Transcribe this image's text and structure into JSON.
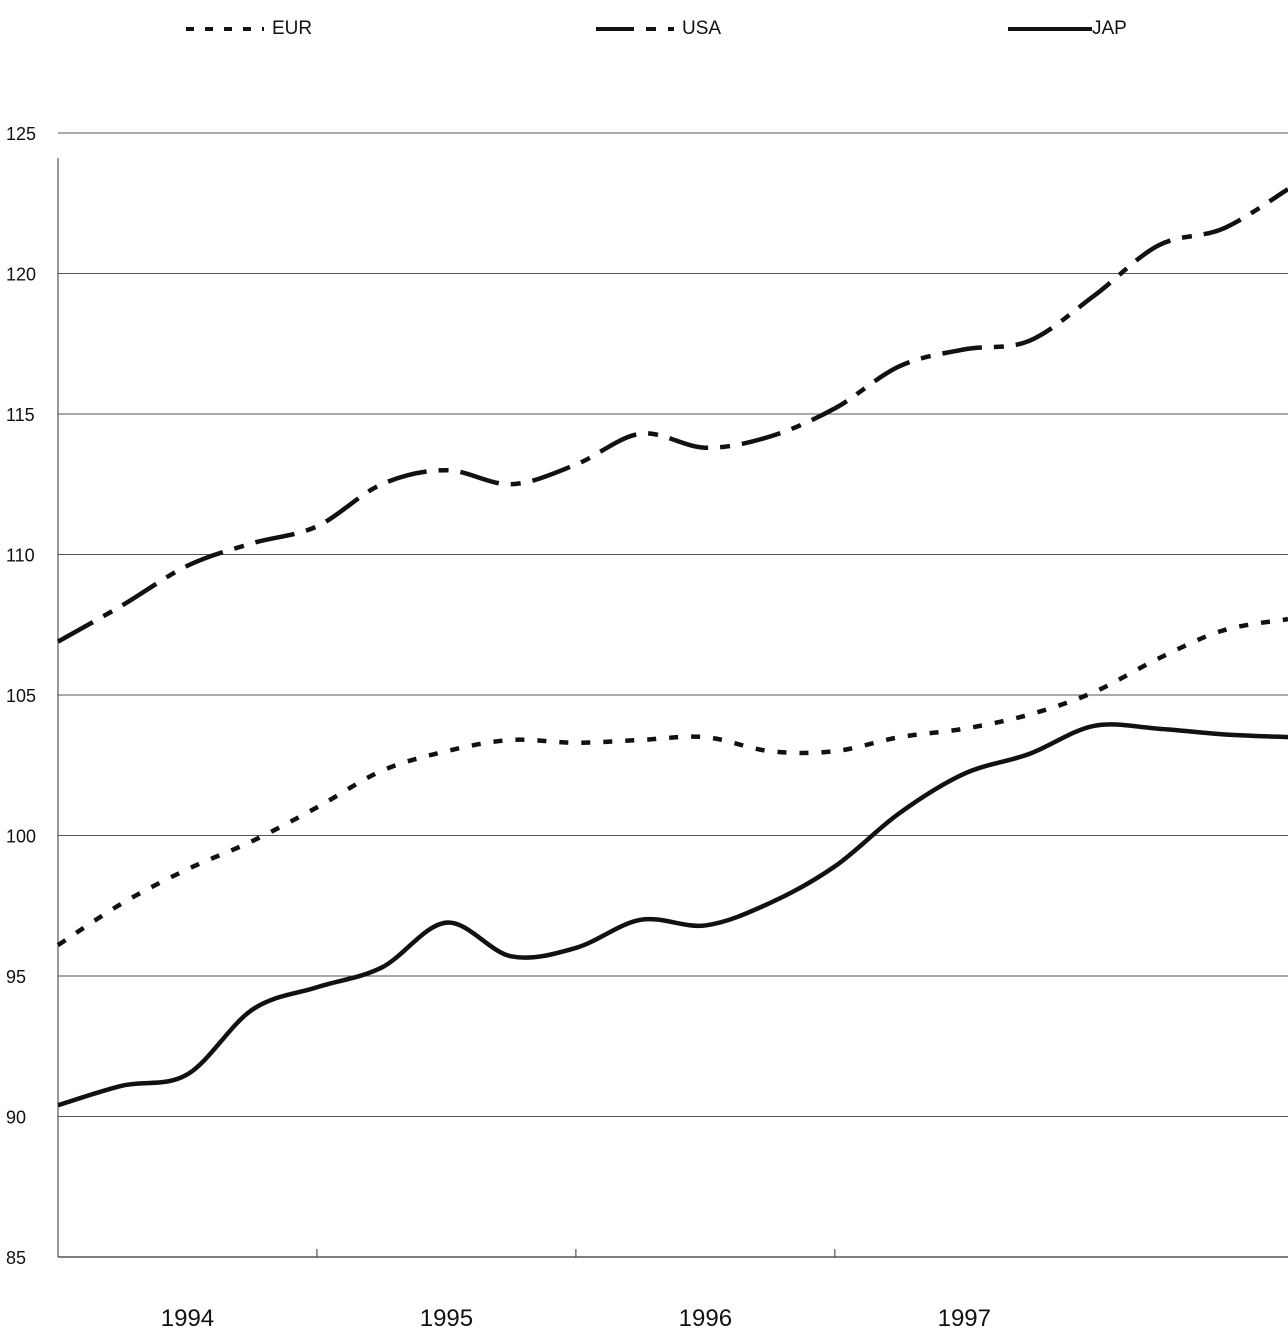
{
  "chart_data": {
    "type": "line",
    "title": "",
    "xlabel": "",
    "ylabel": "",
    "ylim": [
      85,
      125
    ],
    "yticks": [
      125,
      120,
      115,
      110,
      105,
      100,
      95,
      90,
      85
    ],
    "xticks": [
      "1994",
      "1995",
      "1996",
      "1997"
    ],
    "grid": true,
    "legend_position": "top",
    "x": [
      1993.5,
      1993.75,
      1994.0,
      1994.25,
      1994.5,
      1994.75,
      1995.0,
      1995.25,
      1995.5,
      1995.75,
      1996.0,
      1996.25,
      1996.5,
      1996.75,
      1997.0,
      1997.25,
      1997.5,
      1997.75,
      1998.0,
      1998.25
    ],
    "series": [
      {
        "name": "EUR",
        "style": "dotted",
        "values": [
          96.1,
          97.6,
          98.8,
          99.8,
          101.0,
          102.3,
          103.0,
          103.4,
          103.3,
          103.4,
          103.5,
          103.0,
          103.0,
          103.5,
          103.8,
          104.3,
          105.1,
          106.3,
          107.3,
          107.7
        ]
      },
      {
        "name": "USA",
        "style": "dashed",
        "values": [
          106.9,
          108.2,
          109.6,
          110.4,
          111.0,
          112.5,
          113.0,
          112.5,
          113.2,
          114.3,
          113.8,
          114.2,
          115.2,
          116.7,
          117.3,
          117.6,
          119.2,
          121.0,
          121.6,
          123.0
        ]
      },
      {
        "name": "JAP",
        "style": "solid",
        "values": [
          90.4,
          91.1,
          91.5,
          93.8,
          94.6,
          95.3,
          96.9,
          95.7,
          96.0,
          97.0,
          96.8,
          97.6,
          98.9,
          100.8,
          102.2,
          102.9,
          103.9,
          103.8,
          103.6,
          103.5
        ]
      }
    ]
  }
}
